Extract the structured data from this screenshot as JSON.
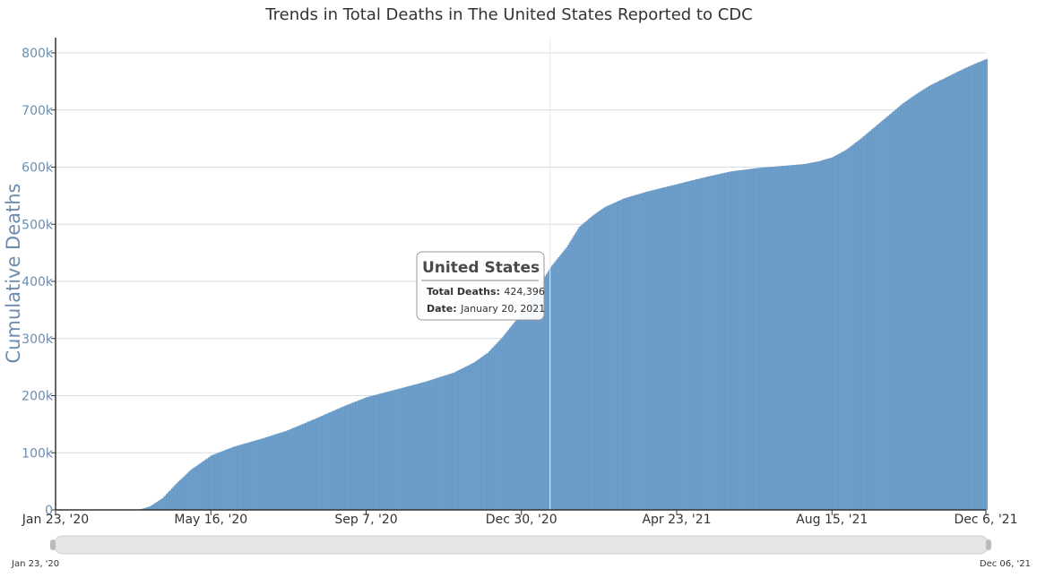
{
  "chart_data": {
    "type": "area",
    "title": "Trends in Total Deaths in The United States Reported to CDC",
    "ylabel": "Cumulative Deaths",
    "xlabel": "",
    "ylim": [
      0,
      800000
    ],
    "yticks": [
      0,
      100000,
      200000,
      300000,
      400000,
      500000,
      600000,
      700000,
      800000
    ],
    "ytick_labels": [
      "0",
      "100k",
      "200k",
      "300k",
      "400k",
      "500k",
      "600k",
      "700k",
      "800k"
    ],
    "xlim": [
      "2020-01-23",
      "2021-12-06"
    ],
    "xticks": [
      "2020-01-23",
      "2020-05-16",
      "2020-09-07",
      "2020-12-30",
      "2021-04-23",
      "2021-08-15",
      "2021-12-06"
    ],
    "xtick_labels": [
      "Jan 23, '20",
      "May 16, '20",
      "Sep 7, '20",
      "Dec 30, '20",
      "Apr 23, '21",
      "Aug 15, '21",
      "Dec 6, '21"
    ],
    "grid": true,
    "color": "#6f9fcb",
    "series": [
      {
        "x": [
          "2020-01-23",
          "2020-02-29",
          "2020-03-15",
          "2020-03-25",
          "2020-04-01",
          "2020-04-10",
          "2020-04-20",
          "2020-05-01",
          "2020-05-16",
          "2020-06-01",
          "2020-06-20",
          "2020-07-10",
          "2020-08-01",
          "2020-08-20",
          "2020-09-07",
          "2020-10-01",
          "2020-10-20",
          "2020-11-10",
          "2020-11-25",
          "2020-12-05",
          "2020-12-15",
          "2020-12-30",
          "2021-01-10",
          "2021-01-20",
          "2021-02-01",
          "2021-02-10",
          "2021-02-20",
          "2021-03-01",
          "2021-03-15",
          "2021-04-01",
          "2021-04-23",
          "2021-05-15",
          "2021-06-01",
          "2021-06-20",
          "2021-07-10",
          "2021-07-25",
          "2021-08-05",
          "2021-08-15",
          "2021-08-25",
          "2021-09-05",
          "2021-09-15",
          "2021-09-25",
          "2021-10-05",
          "2021-10-15",
          "2021-10-25",
          "2021-11-05",
          "2021-11-15",
          "2021-11-25",
          "2021-12-06"
        ],
        "y": [
          0,
          0,
          50,
          800,
          6000,
          20000,
          45000,
          70000,
          95000,
          110000,
          123000,
          138000,
          160000,
          180000,
          197000,
          212000,
          224000,
          240000,
          258000,
          275000,
          300000,
          345000,
          385000,
          424396,
          460000,
          495000,
          515000,
          530000,
          545000,
          557000,
          570000,
          583000,
          592000,
          598000,
          602000,
          605000,
          610000,
          617000,
          630000,
          650000,
          670000,
          690000,
          710000,
          727000,
          742000,
          755000,
          767000,
          778000,
          789000
        ]
      }
    ],
    "tooltip": {
      "title": "United States",
      "rows": [
        {
          "key": "Total Deaths:",
          "value": "424,396"
        },
        {
          "key": "Date:",
          "value": "January 20, 2021"
        }
      ]
    },
    "range_selector": {
      "start_label": "Jan 23, '20",
      "end_label": "Dec 06, '21"
    }
  }
}
